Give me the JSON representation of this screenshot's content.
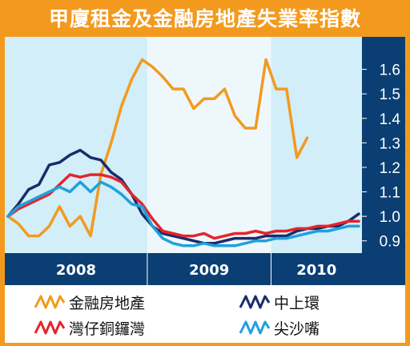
{
  "title": "甲廈租金及金融房地產失業率指數",
  "chart_data": {
    "type": "line",
    "ylim": [
      0.85,
      1.7
    ],
    "yticks": [
      "1.6",
      "1.5",
      "1.4",
      "1.3",
      "1.2",
      "1.1",
      "1.0",
      "0.9"
    ],
    "ytick_values": [
      1.6,
      1.5,
      1.4,
      1.3,
      1.2,
      1.1,
      1.0,
      0.9
    ],
    "year_labels": [
      "2008",
      "2009",
      "2010"
    ],
    "year_bands": [
      {
        "label": "2008",
        "start": 0,
        "end": 14,
        "shade": "#d2eef8"
      },
      {
        "label": "2009",
        "start": 14,
        "end": 26,
        "shade": "#eef8fc"
      },
      {
        "label": "2010",
        "start": 26,
        "end": 35,
        "shade": "#d2eef8"
      }
    ],
    "x_count": 35,
    "series": [
      {
        "name": "金融房地產",
        "color": "#f39a1e",
        "values": [
          1.0,
          0.97,
          0.92,
          0.92,
          0.96,
          1.04,
          0.96,
          1.0,
          0.92,
          1.17,
          1.3,
          1.45,
          1.56,
          1.64,
          1.61,
          1.57,
          1.52,
          1.52,
          1.44,
          1.48,
          1.48,
          1.52,
          1.41,
          1.36,
          1.36,
          1.64,
          1.52,
          1.52,
          1.24,
          1.32
        ]
      },
      {
        "name": "中上環",
        "color": "#1c2b6b",
        "values": [
          1.0,
          1.05,
          1.11,
          1.13,
          1.21,
          1.22,
          1.25,
          1.27,
          1.24,
          1.23,
          1.18,
          1.15,
          1.09,
          1.01,
          0.96,
          0.93,
          0.92,
          0.91,
          0.9,
          0.89,
          0.89,
          0.9,
          0.91,
          0.91,
          0.91,
          0.92,
          0.92,
          0.92,
          0.94,
          0.95,
          0.95,
          0.96,
          0.96,
          0.98,
          1.01
        ]
      },
      {
        "name": "灣仔銅鑼灣",
        "color": "#e5242b",
        "values": [
          1.0,
          1.03,
          1.05,
          1.07,
          1.09,
          1.13,
          1.17,
          1.16,
          1.17,
          1.17,
          1.16,
          1.14,
          1.09,
          1.05,
          0.99,
          0.94,
          0.93,
          0.92,
          0.92,
          0.93,
          0.91,
          0.92,
          0.93,
          0.93,
          0.94,
          0.93,
          0.94,
          0.94,
          0.95,
          0.95,
          0.96,
          0.96,
          0.97,
          0.98,
          0.98
        ]
      },
      {
        "name": "尖沙嘴",
        "color": "#1fa1dc",
        "values": [
          1.0,
          1.04,
          1.06,
          1.08,
          1.1,
          1.12,
          1.1,
          1.14,
          1.1,
          1.14,
          1.12,
          1.09,
          1.05,
          1.04,
          0.96,
          0.91,
          0.89,
          0.88,
          0.88,
          0.89,
          0.88,
          0.88,
          0.88,
          0.89,
          0.9,
          0.9,
          0.91,
          0.91,
          0.92,
          0.93,
          0.94,
          0.94,
          0.95,
          0.96,
          0.96
        ]
      }
    ]
  },
  "legend": [
    {
      "label": "金融房地產",
      "color": "#f39a1e"
    },
    {
      "label": "中上環",
      "color": "#1c2b6b"
    },
    {
      "label": "灣仔銅鑼灣",
      "color": "#e5242b"
    },
    {
      "label": "尖沙嘴",
      "color": "#1fa1dc"
    }
  ]
}
